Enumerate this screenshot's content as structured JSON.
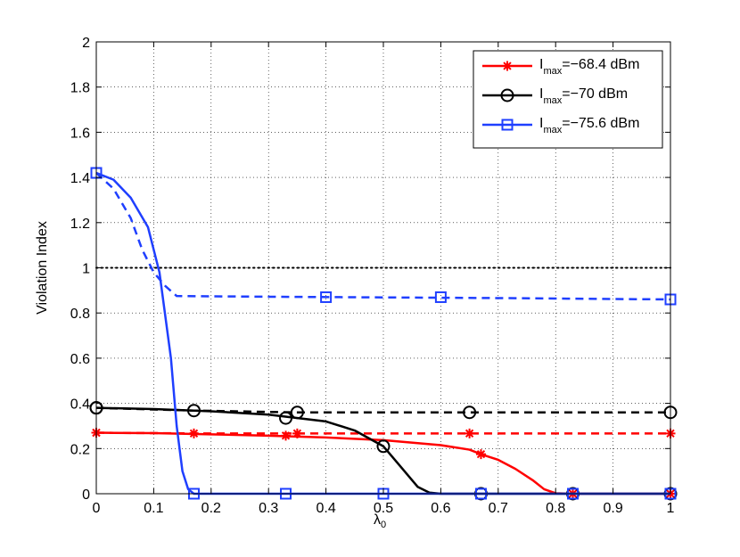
{
  "chart_data": {
    "type": "line",
    "xlabel": "λ",
    "xlabel_sub": "0",
    "ylabel": "Violation Index",
    "xlim": [
      0,
      1
    ],
    "ylim": [
      0,
      2
    ],
    "xticks": [
      0,
      0.1,
      0.2,
      0.3,
      0.4,
      0.5,
      0.6,
      0.7,
      0.8,
      0.9,
      1
    ],
    "xtick_labels": [
      "0",
      "0.1",
      "0.2",
      "0.3",
      "0.4",
      "0.5",
      "0.6",
      "0.7",
      "0.8",
      "0.9",
      "1"
    ],
    "yticks": [
      0,
      0.2,
      0.4,
      0.6,
      0.8,
      1,
      1.2,
      1.4,
      1.6,
      1.8,
      2
    ],
    "ytick_labels": [
      "0",
      "0.2",
      "0.4",
      "0.6",
      "0.8",
      "1",
      "1.2",
      "1.4",
      "1.6",
      "1.8",
      "2"
    ],
    "grid": true,
    "legend_position": "top-right",
    "reference_line": {
      "y": 1,
      "style": "dotted",
      "color": "#000000"
    },
    "series": [
      {
        "legend_main": "I",
        "legend_sub": "max",
        "legend_rest": "=−68.4 dBm",
        "color": "#ff0000",
        "marker": "star",
        "solid": {
          "x": [
            0,
            0.1,
            0.2,
            0.3,
            0.4,
            0.5,
            0.6,
            0.65,
            0.67,
            0.7,
            0.73,
            0.76,
            0.78,
            0.8,
            0.83,
            1
          ],
          "y": [
            0.27,
            0.268,
            0.263,
            0.257,
            0.249,
            0.237,
            0.215,
            0.195,
            0.175,
            0.15,
            0.11,
            0.06,
            0.02,
            0.002,
            0,
            0
          ]
        },
        "solid_markers": {
          "x": [
            0,
            0.33,
            0.67,
            0.83,
            1
          ],
          "y": [
            0.27,
            0.257,
            0.175,
            0,
            0
          ]
        },
        "dashed": {
          "x": [
            0,
            0.17,
            0.35,
            1
          ],
          "y": [
            0.27,
            0.267,
            0.267,
            0.267
          ]
        },
        "dashed_markers": {
          "x": [
            0,
            0.17,
            0.35,
            0.65,
            1
          ],
          "y": [
            0.27,
            0.267,
            0.267,
            0.267,
            0.267
          ]
        }
      },
      {
        "legend_main": "I",
        "legend_sub": "max",
        "legend_rest": "=−70 dBm",
        "color": "#000000",
        "marker": "circle",
        "solid": {
          "x": [
            0,
            0.1,
            0.2,
            0.3,
            0.4,
            0.45,
            0.5,
            0.53,
            0.56,
            0.58,
            0.6,
            1
          ],
          "y": [
            0.38,
            0.375,
            0.365,
            0.35,
            0.32,
            0.28,
            0.21,
            0.12,
            0.03,
            0.005,
            0,
            0
          ]
        },
        "solid_markers": {
          "x": [
            0,
            0.33,
            0.5,
            0.67,
            0.83,
            1
          ],
          "y": [
            0.38,
            0.335,
            0.21,
            0,
            0,
            0
          ]
        },
        "dashed": {
          "x": [
            0,
            0.17,
            0.35,
            1
          ],
          "y": [
            0.38,
            0.368,
            0.36,
            0.36
          ]
        },
        "dashed_markers": {
          "x": [
            0,
            0.17,
            0.35,
            0.65,
            1
          ],
          "y": [
            0.38,
            0.368,
            0.36,
            0.36,
            0.36
          ]
        }
      },
      {
        "legend_main": "I",
        "legend_sub": "max",
        "legend_rest": "=−75.6 dBm",
        "color": "#1f3fff",
        "marker": "square",
        "solid": {
          "x": [
            0,
            0.03,
            0.06,
            0.09,
            0.11,
            0.13,
            0.14,
            0.15,
            0.16,
            0.17,
            1
          ],
          "y": [
            1.42,
            1.39,
            1.31,
            1.18,
            0.98,
            0.6,
            0.3,
            0.1,
            0.02,
            0,
            0
          ]
        },
        "solid_markers": {
          "x": [
            0,
            0.17,
            0.33,
            0.5,
            0.67,
            0.83,
            1
          ],
          "y": [
            1.42,
            0,
            0,
            0,
            0,
            0,
            0
          ]
        },
        "dashed": {
          "x": [
            0,
            0.03,
            0.06,
            0.08,
            0.1,
            0.12,
            0.14,
            0.3,
            0.5,
            0.7,
            1
          ],
          "y": [
            1.42,
            1.35,
            1.22,
            1.08,
            0.98,
            0.92,
            0.875,
            0.872,
            0.869,
            0.866,
            0.86
          ]
        },
        "dashed_markers": {
          "x": [
            0,
            0.4,
            0.6,
            1
          ],
          "y": [
            1.42,
            0.87,
            0.87,
            0.86
          ]
        }
      }
    ]
  }
}
